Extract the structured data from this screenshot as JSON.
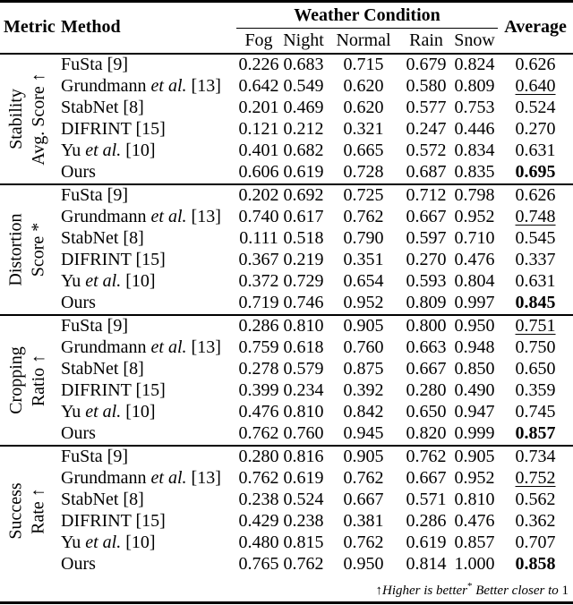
{
  "colors": {
    "text": "#000000",
    "background": "#ffffff",
    "rule": "#000000"
  },
  "header": {
    "metric": "Metric",
    "method": "Method",
    "weather_condition": "Weather Condition",
    "columns": [
      "Fog",
      "Night",
      "Normal",
      "Rain",
      "Snow"
    ],
    "average": "Average"
  },
  "groups": [
    {
      "label_line1": "Stability",
      "label_line2": "Avg. Score ↑",
      "rows": [
        {
          "m0": "FuSta [9]",
          "m1": "",
          "m2": "",
          "v": [
            "0.226",
            "0.683",
            "0.715",
            "0.679",
            "0.824"
          ],
          "avg": "0.626"
        },
        {
          "m0": "Grundmann ",
          "m1": "et al.",
          "m2": " [13]",
          "v": [
            "0.642",
            "0.549",
            "0.620",
            "0.580",
            "0.809"
          ],
          "avg": "0.640"
        },
        {
          "m0": "StabNet [8]",
          "m1": "",
          "m2": "",
          "v": [
            "0.201",
            "0.469",
            "0.620",
            "0.577",
            "0.753"
          ],
          "avg": "0.524"
        },
        {
          "m0": "DIFRINT [15]",
          "m1": "",
          "m2": "",
          "v": [
            "0.121",
            "0.212",
            "0.321",
            "0.247",
            "0.446"
          ],
          "avg": "0.270"
        },
        {
          "m0": "Yu ",
          "m1": "et al.",
          "m2": " [10]",
          "v": [
            "0.401",
            "0.682",
            "0.665",
            "0.572",
            "0.834"
          ],
          "avg": "0.631"
        },
        {
          "m0": "Ours",
          "m1": "",
          "m2": "",
          "v": [
            "0.606",
            "0.619",
            "0.728",
            "0.687",
            "0.835"
          ],
          "avg": "0.695"
        }
      ]
    },
    {
      "label_line1": "Distortion",
      "label_line2": "Score *",
      "rows": [
        {
          "m0": "FuSta [9]",
          "m1": "",
          "m2": "",
          "v": [
            "0.202",
            "0.692",
            "0.725",
            "0.712",
            "0.798"
          ],
          "avg": "0.626"
        },
        {
          "m0": "Grundmann ",
          "m1": "et al.",
          "m2": " [13]",
          "v": [
            "0.740",
            "0.617",
            "0.762",
            "0.667",
            "0.952"
          ],
          "avg": "0.748"
        },
        {
          "m0": "StabNet [8]",
          "m1": "",
          "m2": "",
          "v": [
            "0.111",
            "0.518",
            "0.790",
            "0.597",
            "0.710"
          ],
          "avg": "0.545"
        },
        {
          "m0": "DIFRINT [15]",
          "m1": "",
          "m2": "",
          "v": [
            "0.367",
            "0.219",
            "0.351",
            "0.270",
            "0.476"
          ],
          "avg": "0.337"
        },
        {
          "m0": "Yu ",
          "m1": "et al.",
          "m2": " [10]",
          "v": [
            "0.372",
            "0.729",
            "0.654",
            "0.593",
            "0.804"
          ],
          "avg": "0.631"
        },
        {
          "m0": "Ours",
          "m1": "",
          "m2": "",
          "v": [
            "0.719",
            "0.746",
            "0.952",
            "0.809",
            "0.997"
          ],
          "avg": "0.845"
        }
      ]
    },
    {
      "label_line1": "Cropping",
      "label_line2": "Ratio ↑",
      "rows": [
        {
          "m0": "FuSta [9]",
          "m1": "",
          "m2": "",
          "v": [
            "0.286",
            "0.810",
            "0.905",
            "0.800",
            "0.950"
          ],
          "avg": "0.751"
        },
        {
          "m0": "Grundmann ",
          "m1": "et al.",
          "m2": " [13]",
          "v": [
            "0.759",
            "0.618",
            "0.760",
            "0.663",
            "0.948"
          ],
          "avg": "0.750"
        },
        {
          "m0": "StabNet [8]",
          "m1": "",
          "m2": "",
          "v": [
            "0.278",
            "0.579",
            "0.875",
            "0.667",
            "0.850"
          ],
          "avg": "0.650"
        },
        {
          "m0": "DIFRINT [15]",
          "m1": "",
          "m2": "",
          "v": [
            "0.399",
            "0.234",
            "0.392",
            "0.280",
            "0.490"
          ],
          "avg": "0.359"
        },
        {
          "m0": "Yu ",
          "m1": "et al.",
          "m2": " [10]",
          "v": [
            "0.476",
            "0.810",
            "0.842",
            "0.650",
            "0.947"
          ],
          "avg": "0.745"
        },
        {
          "m0": "Ours",
          "m1": "",
          "m2": "",
          "v": [
            "0.762",
            "0.760",
            "0.945",
            "0.820",
            "0.999"
          ],
          "avg": "0.857"
        }
      ]
    },
    {
      "label_line1": "Success",
      "label_line2": "Rate ↑",
      "rows": [
        {
          "m0": "FuSta [9]",
          "m1": "",
          "m2": "",
          "v": [
            "0.280",
            "0.816",
            "0.905",
            "0.762",
            "0.905"
          ],
          "avg": "0.734"
        },
        {
          "m0": "Grundmann ",
          "m1": "et al.",
          "m2": " [13]",
          "v": [
            "0.762",
            "0.619",
            "0.762",
            "0.667",
            "0.952"
          ],
          "avg": "0.752"
        },
        {
          "m0": "StabNet [8]",
          "m1": "",
          "m2": "",
          "v": [
            "0.238",
            "0.524",
            "0.667",
            "0.571",
            "0.810"
          ],
          "avg": "0.562"
        },
        {
          "m0": "DIFRINT [15]",
          "m1": "",
          "m2": "",
          "v": [
            "0.429",
            "0.238",
            "0.381",
            "0.286",
            "0.476"
          ],
          "avg": "0.362"
        },
        {
          "m0": "Yu ",
          "m1": "et al.",
          "m2": " [10]",
          "v": [
            "0.480",
            "0.815",
            "0.762",
            "0.619",
            "0.857"
          ],
          "avg": "0.707"
        },
        {
          "m0": "Ours",
          "m1": "",
          "m2": "",
          "v": [
            "0.765",
            "0.762",
            "0.950",
            "0.814",
            "1.000"
          ],
          "avg": "0.858"
        }
      ]
    }
  ],
  "footnote": {
    "arrow": "↑",
    "higher": "Higher is better",
    "star": "*",
    "closer": " Better closer to ",
    "one": "1"
  }
}
